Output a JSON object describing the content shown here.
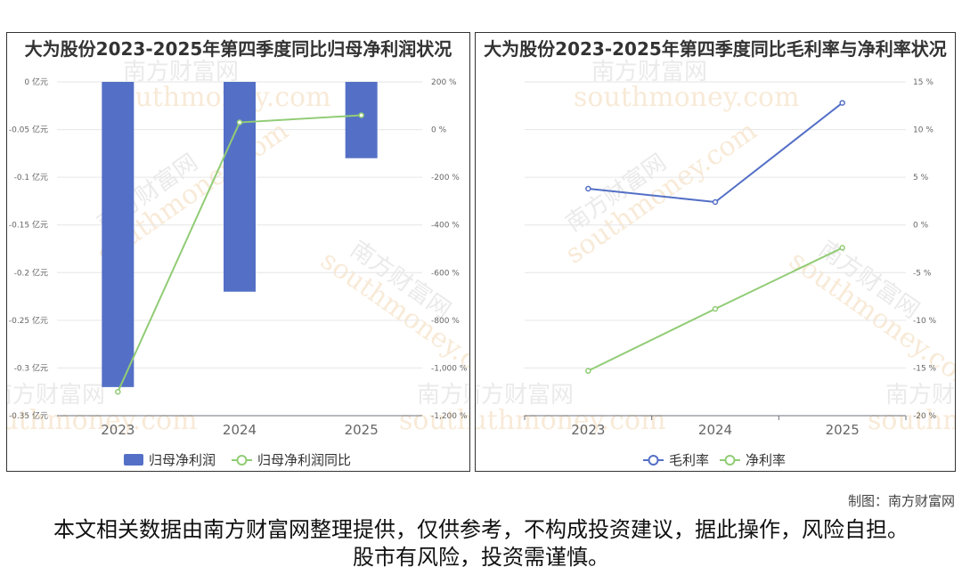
{
  "chart_data": [
    {
      "type": "bar+line",
      "title": "大为股份2023-2025年第四季度同比归母净利润状况",
      "categories": [
        "2023",
        "2024",
        "2025"
      ],
      "series": [
        {
          "name": "归母净利润",
          "type": "bar",
          "axis": "left",
          "values": [
            -0.32,
            -0.22,
            -0.08
          ],
          "color": "#5470c6"
        },
        {
          "name": "归母净利润同比",
          "type": "line",
          "axis": "right",
          "values": [
            -1100,
            30,
            60
          ],
          "color": "#91cc75"
        }
      ],
      "y_left": {
        "ticks": [
          "0 亿元",
          "-0.05 亿元",
          "-0.1 亿元",
          "-0.15 亿元",
          "-0.2 亿元",
          "-0.25 亿元",
          "-0.3 亿元",
          "-0.35 亿元"
        ],
        "ylim": [
          -0.35,
          0
        ]
      },
      "y_right": {
        "ticks": [
          "200 %",
          "0 %",
          "-200 %",
          "-400 %",
          "-600 %",
          "-800 %",
          "-1,000 %",
          "-1,200 %"
        ],
        "ylim": [
          -1200,
          200
        ]
      },
      "legend_position": "bottom"
    },
    {
      "type": "line",
      "title": "大为股份2023-2025年第四季度同比毛利率与净利率状况",
      "categories": [
        "2023",
        "2024",
        "2025"
      ],
      "series": [
        {
          "name": "毛利率",
          "values": [
            3.8,
            2.4,
            12.8
          ],
          "color": "#5470c6"
        },
        {
          "name": "净利率",
          "values": [
            -15.3,
            -8.8,
            -2.4
          ],
          "color": "#91cc75"
        }
      ],
      "y_right": {
        "ticks": [
          "15 %",
          "10 %",
          "5 %",
          "0 %",
          "-5 %",
          "-10 %",
          "-15 %",
          "-20 %"
        ],
        "ylim": [
          -20,
          15
        ]
      },
      "legend_position": "bottom"
    }
  ],
  "watermark": {
    "cn": "南方财富网",
    "en": "southmoney.com"
  },
  "credit": "制图：南方财富网",
  "disclaimer": "本文相关数据由南方财富网整理提供，仅供参考，不构成投资建议，据此操作，风险自担。股市有风险，投资需谨慎。"
}
